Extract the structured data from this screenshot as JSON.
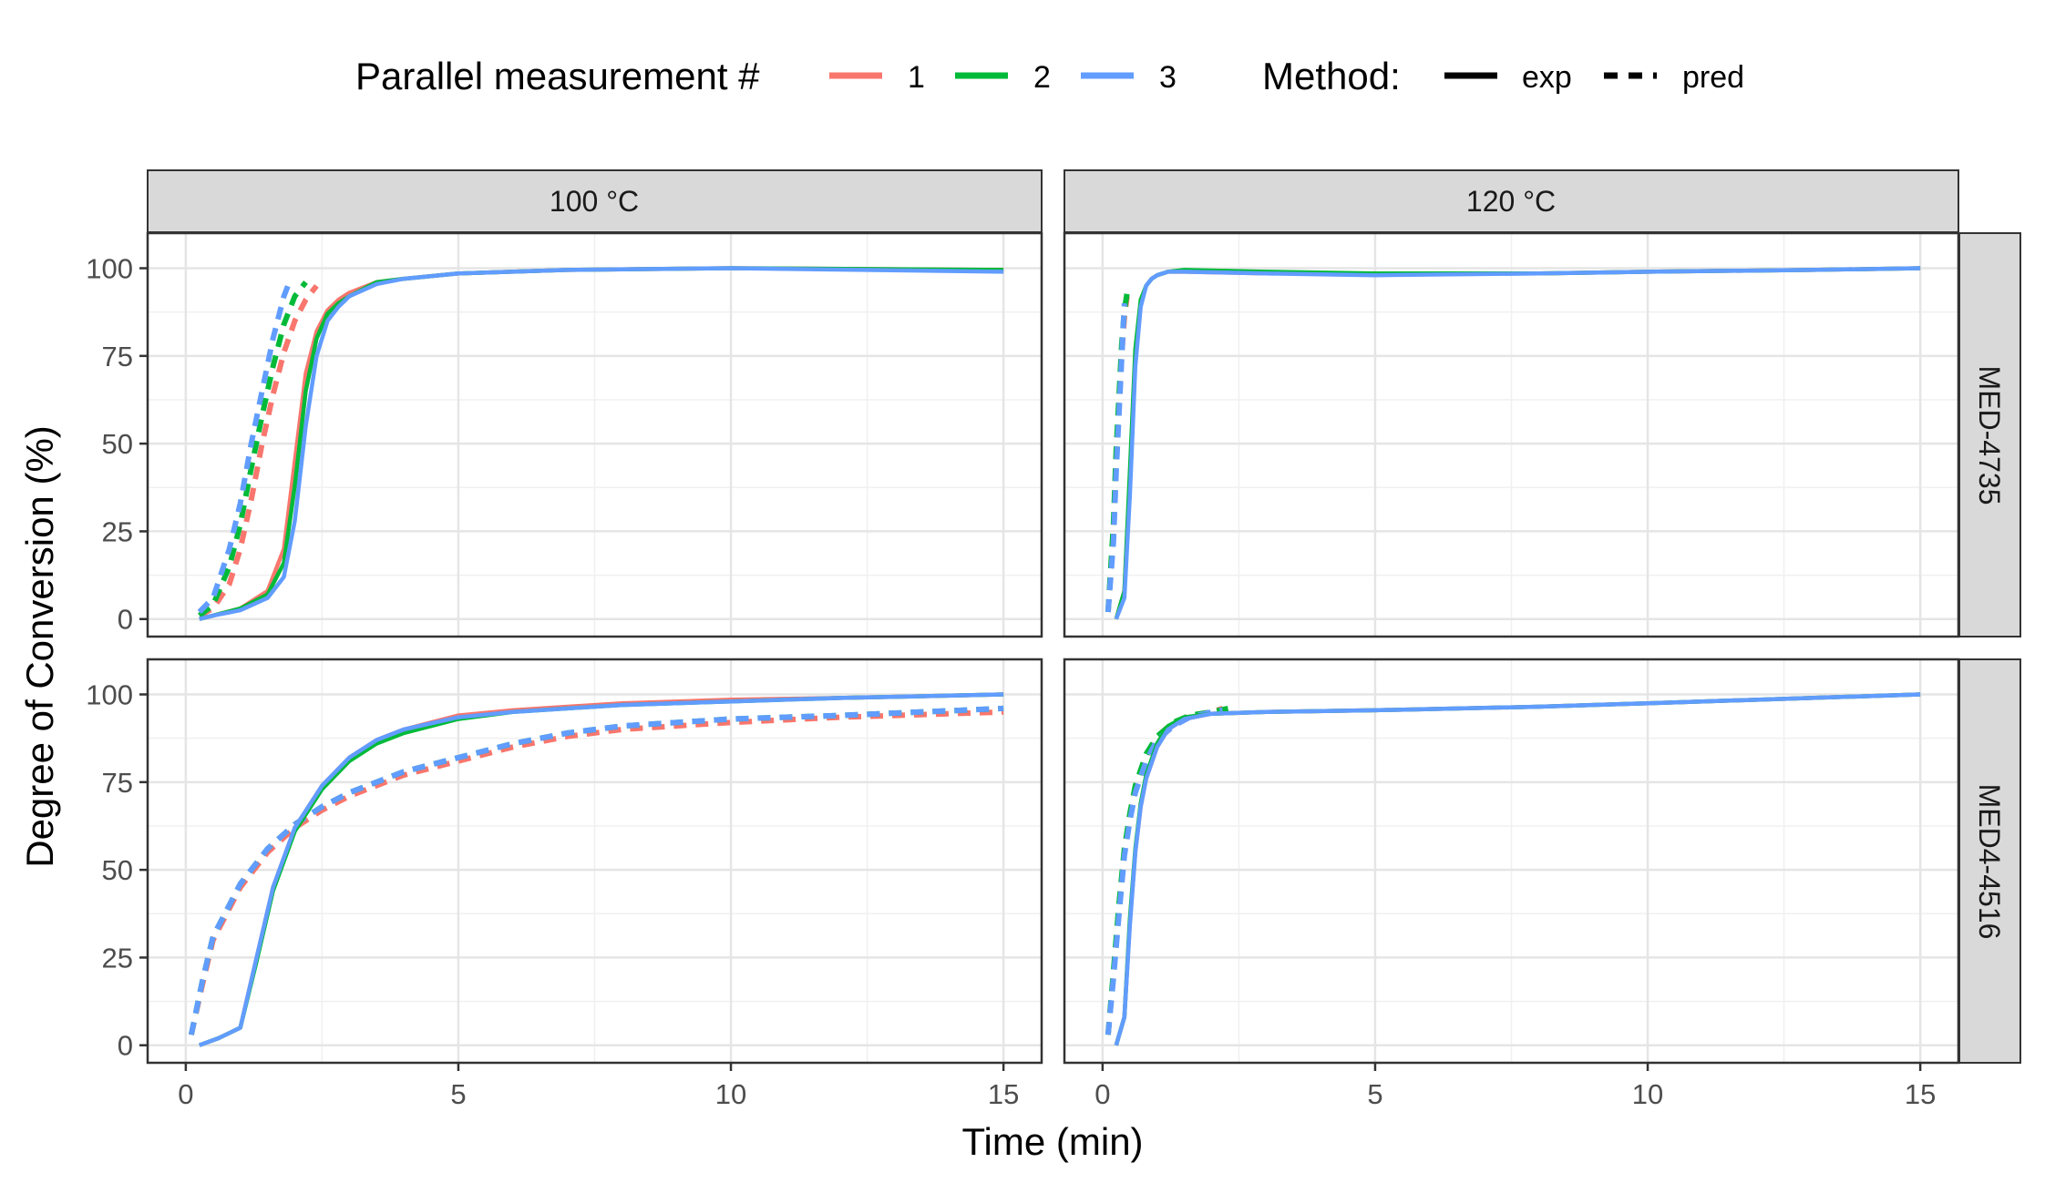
{
  "legend": {
    "measurement_title": "Parallel measurement #",
    "method_title": "Method:",
    "series_labels": [
      "1",
      "2",
      "3"
    ],
    "method_labels": [
      "exp",
      "pred"
    ]
  },
  "colors": {
    "1": "#F8766D",
    "2": "#00BA38",
    "3": "#619CFF"
  },
  "chart_data": {
    "type": "line",
    "xlabel": "Time (min)",
    "ylabel": "Degree of Conversion (%)",
    "xlim": [
      -0.7,
      15.7
    ],
    "ylim": [
      -5,
      110
    ],
    "xticks": [
      0,
      5,
      10,
      15
    ],
    "yticks": [
      0,
      25,
      50,
      75,
      100
    ],
    "grid": true,
    "legend_position": "top",
    "facet_columns": [
      "100 °C",
      "120 °C"
    ],
    "facet_rows": [
      "MED-4735",
      "MED4-4516"
    ],
    "panels": [
      {
        "column": "100 °C",
        "row": "MED-4735",
        "series": [
          {
            "measurement": "1",
            "method": "exp",
            "x": [
              0.25,
              0.5,
              1.0,
              1.5,
              1.8,
              2.0,
              2.2,
              2.4,
              2.6,
              2.8,
              3.0,
              3.5,
              4,
              5,
              7,
              10,
              15
            ],
            "y": [
              0,
              1,
              3,
              8,
              20,
              45,
              70,
              82,
              88,
              91,
              93,
              96,
              97,
              98.5,
              99.5,
              100,
              99.5
            ]
          },
          {
            "measurement": "2",
            "method": "exp",
            "x": [
              0.25,
              0.5,
              1.0,
              1.5,
              1.8,
              2.0,
              2.2,
              2.4,
              2.6,
              2.8,
              3.0,
              3.5,
              4,
              5,
              7,
              10,
              15
            ],
            "y": [
              0,
              1,
              3,
              7,
              16,
              38,
              65,
              80,
              87,
              90,
              92,
              96,
              97,
              98.5,
              99.5,
              100,
              99.5
            ]
          },
          {
            "measurement": "3",
            "method": "exp",
            "x": [
              0.25,
              0.5,
              1.0,
              1.5,
              1.8,
              2.0,
              2.2,
              2.4,
              2.6,
              2.8,
              3.0,
              3.5,
              4,
              5,
              7,
              10,
              15
            ],
            "y": [
              0,
              1,
              2.5,
              6,
              12,
              28,
              55,
              75,
              85,
              89,
              92,
              95.5,
              97,
              98.5,
              99.5,
              100,
              99
            ]
          },
          {
            "measurement": "1",
            "method": "pred",
            "x": [
              0.25,
              0.5,
              0.8,
              1.0,
              1.2,
              1.4,
              1.6,
              1.8,
              2.0,
              2.2,
              2.4
            ],
            "y": [
              1,
              3,
              10,
              20,
              34,
              50,
              64,
              76,
              85,
              91,
              95
            ]
          },
          {
            "measurement": "2",
            "method": "pred",
            "x": [
              0.25,
              0.5,
              0.8,
              1.0,
              1.2,
              1.4,
              1.6,
              1.8,
              2.0,
              2.2
            ],
            "y": [
              1,
              4,
              15,
              27,
              43,
              58,
              72,
              84,
              92,
              96
            ]
          },
          {
            "measurement": "3",
            "method": "pred",
            "x": [
              0.25,
              0.5,
              0.8,
              1.0,
              1.2,
              1.4,
              1.6,
              1.8,
              1.9
            ],
            "y": [
              2,
              6,
              20,
              33,
              50,
              65,
              80,
              92,
              96
            ]
          }
        ]
      },
      {
        "column": "120 °C",
        "row": "MED-4735",
        "series": [
          {
            "measurement": "1",
            "method": "exp",
            "x": [
              0.25,
              0.4,
              0.5,
              0.6,
              0.7,
              0.8,
              0.9,
              1.0,
              1.2,
              1.5,
              3,
              5,
              8,
              10,
              13,
              15
            ],
            "y": [
              0,
              8,
              40,
              75,
              90,
              95,
              97,
              98,
              99,
              99,
              98.5,
              98.5,
              98.5,
              99,
              99.5,
              100
            ]
          },
          {
            "measurement": "2",
            "method": "exp",
            "x": [
              0.25,
              0.4,
              0.5,
              0.6,
              0.7,
              0.8,
              0.9,
              1.0,
              1.2,
              1.5,
              3,
              5,
              8,
              10,
              13,
              15
            ],
            "y": [
              0,
              8,
              42,
              77,
              91,
              95,
              97,
              98,
              99,
              99.5,
              99,
              98.5,
              98.5,
              99,
              99.5,
              100
            ]
          },
          {
            "measurement": "3",
            "method": "exp",
            "x": [
              0.25,
              0.4,
              0.5,
              0.6,
              0.7,
              0.8,
              0.9,
              1.0,
              1.2,
              1.5,
              3,
              5,
              8,
              10,
              13,
              15
            ],
            "y": [
              0,
              6,
              35,
              72,
              89,
              95,
              97,
              98,
              99,
              99,
              98.5,
              98,
              98.5,
              99,
              99.5,
              100
            ]
          },
          {
            "measurement": "1",
            "method": "pred",
            "x": [
              0.1,
              0.2,
              0.25,
              0.3,
              0.35,
              0.4,
              0.45
            ],
            "y": [
              2,
              25,
              45,
              60,
              75,
              86,
              92
            ]
          },
          {
            "measurement": "2",
            "method": "pred",
            "x": [
              0.1,
              0.2,
              0.25,
              0.3,
              0.35,
              0.4,
              0.45
            ],
            "y": [
              2,
              27,
              48,
              63,
              78,
              88,
              93
            ]
          },
          {
            "measurement": "3",
            "method": "pred",
            "x": [
              0.1,
              0.2,
              0.25,
              0.3,
              0.35,
              0.4
            ],
            "y": [
              2,
              22,
              42,
              58,
              74,
              90
            ]
          }
        ]
      },
      {
        "column": "100 °C",
        "row": "MED4-4516",
        "series": [
          {
            "measurement": "1",
            "method": "exp",
            "x": [
              0.25,
              0.6,
              1.0,
              1.3,
              1.6,
              2.0,
              2.5,
              3.0,
              3.5,
              4,
              5,
              6,
              7,
              8,
              10,
              12,
              15
            ],
            "y": [
              0,
              2,
              5,
              25,
              45,
              62,
              74,
              82,
              87,
              90,
              94,
              95.5,
              96.5,
              97.5,
              98.5,
              99,
              100
            ]
          },
          {
            "measurement": "2",
            "method": "exp",
            "x": [
              0.25,
              0.6,
              1.0,
              1.3,
              1.6,
              2.0,
              2.5,
              3.0,
              3.5,
              4,
              5,
              6,
              7,
              8,
              10,
              12,
              15
            ],
            "y": [
              0,
              2,
              5,
              24,
              44,
              61,
              73,
              81,
              86,
              89,
              93,
              95,
              96,
              97,
              98,
              99,
              100
            ]
          },
          {
            "measurement": "3",
            "method": "exp",
            "x": [
              0.25,
              0.6,
              1.0,
              1.3,
              1.6,
              2.0,
              2.5,
              3.0,
              3.5,
              4,
              5,
              6,
              7,
              8,
              10,
              12,
              15
            ],
            "y": [
              0,
              2,
              5,
              25,
              45,
              62,
              74,
              82,
              87,
              90,
              93.5,
              95,
              96,
              97,
              98,
              99,
              100
            ]
          },
          {
            "measurement": "1",
            "method": "pred",
            "x": [
              0.1,
              0.3,
              0.5,
              1.0,
              1.5,
              2.0,
              2.5,
              3.0,
              4,
              5,
              6,
              7,
              8,
              10,
              12,
              15
            ],
            "y": [
              3,
              17,
              30,
              45,
              55,
              62,
              67,
              71,
              77,
              81,
              85,
              88,
              90,
              92,
              93.5,
              95
            ]
          },
          {
            "measurement": "2",
            "method": "pred",
            "x": [
              0.1,
              0.3,
              0.5,
              1.0,
              1.5,
              2.0,
              2.5,
              3.0,
              4,
              5,
              6,
              7,
              8,
              10,
              12,
              15
            ],
            "y": [
              3,
              18,
              31,
              46,
              56,
              63,
              68,
              72,
              78,
              82,
              86,
              89,
              91,
              93,
              94,
              96
            ]
          },
          {
            "measurement": "3",
            "method": "pred",
            "x": [
              0.1,
              0.3,
              0.5,
              1.0,
              1.5,
              2.0,
              2.5,
              3.0,
              4,
              5,
              6,
              7,
              8,
              10,
              12,
              15
            ],
            "y": [
              3,
              18,
              31,
              46,
              56,
              63,
              68,
              72,
              78,
              82,
              86,
              89,
              91,
              93,
              94,
              96
            ]
          }
        ]
      },
      {
        "column": "120 °C",
        "row": "MED4-4516",
        "series": [
          {
            "measurement": "1",
            "method": "exp",
            "x": [
              0.25,
              0.4,
              0.5,
              0.6,
              0.7,
              0.8,
              1.0,
              1.2,
              1.5,
              2.0,
              3,
              5,
              8,
              10,
              13,
              15
            ],
            "y": [
              0,
              8,
              35,
              55,
              68,
              76,
              85,
              90,
              93,
              94.5,
              95,
              95.5,
              96.5,
              97.5,
              99,
              100
            ]
          },
          {
            "measurement": "2",
            "method": "exp",
            "x": [
              0.25,
              0.4,
              0.5,
              0.6,
              0.7,
              0.8,
              1.0,
              1.2,
              1.5,
              2.0,
              3,
              5,
              8,
              10,
              13,
              15
            ],
            "y": [
              0,
              8,
              36,
              56,
              69,
              77,
              86,
              91,
              93.5,
              94.5,
              95,
              95.5,
              96.5,
              97.5,
              99,
              100
            ]
          },
          {
            "measurement": "3",
            "method": "exp",
            "x": [
              0.25,
              0.4,
              0.5,
              0.6,
              0.7,
              0.8,
              1.0,
              1.2,
              1.5,
              2.0,
              3,
              5,
              8,
              10,
              13,
              15
            ],
            "y": [
              0,
              8,
              34,
              55,
              68,
              76,
              85,
              90,
              93,
              94.5,
              95,
              95.5,
              96.5,
              97.5,
              99,
              100
            ]
          },
          {
            "measurement": "1",
            "method": "pred",
            "x": [
              0.1,
              0.2,
              0.3,
              0.4,
              0.5,
              0.6,
              0.8,
              1.0,
              1.3,
              1.6,
              2.0,
              2.2
            ],
            "y": [
              3,
              20,
              38,
              55,
              65,
              73,
              82,
              88,
              92,
              94,
              95,
              96
            ]
          },
          {
            "measurement": "2",
            "method": "pred",
            "x": [
              0.1,
              0.2,
              0.3,
              0.4,
              0.5,
              0.6,
              0.8,
              1.0,
              1.3,
              1.6,
              2.0,
              2.3
            ],
            "y": [
              3,
              21,
              40,
              56,
              66,
              74,
              83,
              88,
              92,
              94,
              95,
              96
            ]
          },
          {
            "measurement": "3",
            "method": "pred",
            "x": [
              0.1,
              0.2,
              0.3,
              0.4,
              0.5,
              0.6,
              0.8,
              1.0,
              1.3,
              1.6,
              2.0,
              2.2
            ],
            "y": [
              3,
              19,
              37,
              54,
              64,
              72,
              81,
              87,
              91,
              93.5,
              95,
              95.5
            ]
          }
        ]
      }
    ]
  }
}
